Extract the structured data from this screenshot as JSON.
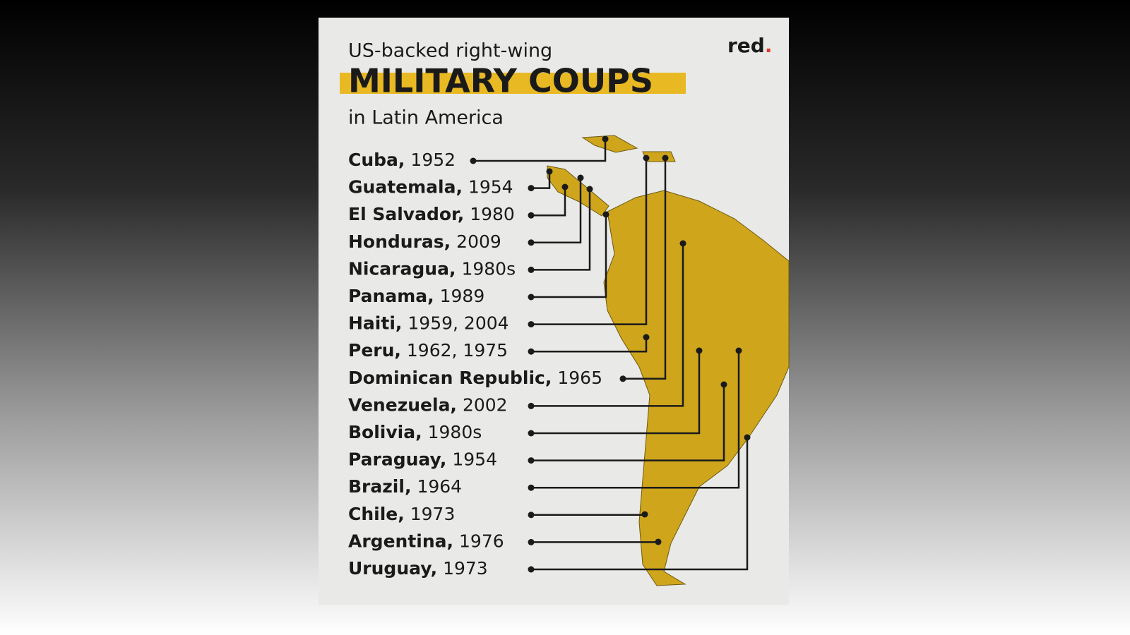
{
  "header": {
    "kicker": "US-backed right-wing",
    "title": "MILITARY COUPS",
    "subtitle": "in Latin America",
    "brand": "red",
    "brand_dot": "."
  },
  "entries": [
    {
      "country": "Cuba,",
      "years": "1952"
    },
    {
      "country": "Guatemala,",
      "years": "1954"
    },
    {
      "country": "El Salvador,",
      "years": "1980"
    },
    {
      "country": "Honduras,",
      "years": "2009"
    },
    {
      "country": "Nicaragua,",
      "years": "1980s"
    },
    {
      "country": "Panama,",
      "years": "1989"
    },
    {
      "country": "Haiti,",
      "years": "1959, 2004"
    },
    {
      "country": "Peru,",
      "years": "1962, 1975"
    },
    {
      "country": "Dominican Republic,",
      "years": "1965"
    },
    {
      "country": "Venezuela,",
      "years": "2002"
    },
    {
      "country": "Bolivia,",
      "years": "1980s"
    },
    {
      "country": "Paraguay,",
      "years": "1954"
    },
    {
      "country": "Brazil,",
      "years": "1964"
    },
    {
      "country": "Chile,",
      "years": "1973"
    },
    {
      "country": "Argentina,",
      "years": "1976"
    },
    {
      "country": "Uruguay,",
      "years": "1973"
    }
  ]
}
